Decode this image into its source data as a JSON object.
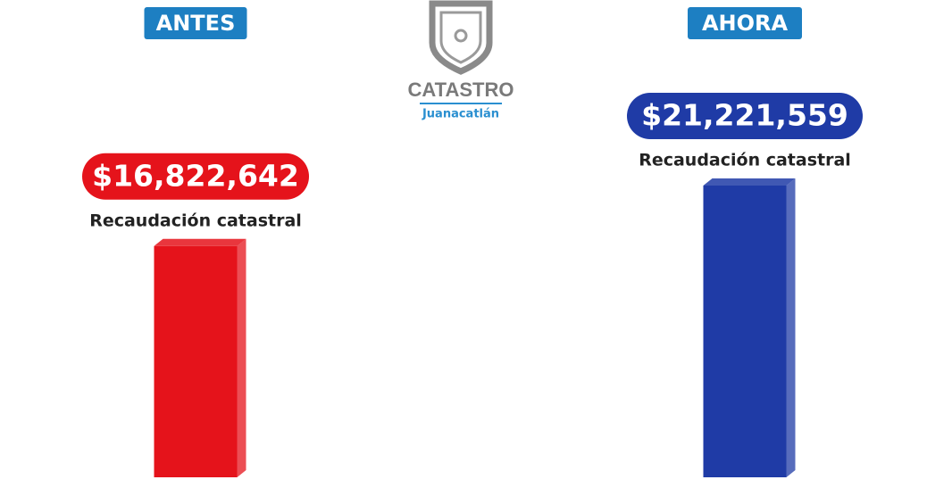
{
  "chart_data": {
    "type": "bar",
    "categories": [
      "ANTES",
      "AHORA"
    ],
    "values": [
      16822642,
      21221559
    ],
    "value_labels": [
      "$16,822,642",
      "$21,221,559"
    ],
    "value_caption": "Recaudación catastral",
    "colors": [
      "#e5131b",
      "#1f3ba6"
    ]
  },
  "logo": {
    "title": "CATASTRO",
    "subtitle": "Juanacatlán"
  }
}
